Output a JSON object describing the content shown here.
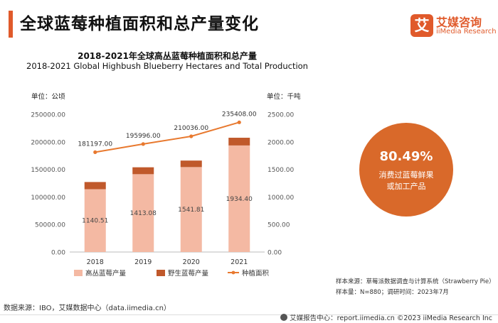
{
  "page": {
    "title": "全球蓝莓种植面积和总产量变化"
  },
  "logo": {
    "mark": "艾",
    "name_cn": "艾媒咨询",
    "name_en": "iiMedia Research"
  },
  "chart_data": {
    "type": "bar+line",
    "title": "2018-2021年全球高丛蓝莓种植面积和总产量",
    "subtitle": "2018-2021 Global  Highbush Blueberry Hectares and Total Production",
    "categories": [
      "2018",
      "2019",
      "2020",
      "2021"
    ],
    "left_axis": {
      "unit_label": "单位：公顷",
      "range": [
        0,
        250000
      ],
      "ticks": [
        "0.00",
        "50000.00",
        "100000.00",
        "150000.00",
        "200000.00",
        "250000.00"
      ]
    },
    "right_axis": {
      "unit_label": "单位：千吨",
      "range": [
        0,
        2500
      ],
      "ticks": [
        "0.00",
        "500.00",
        "1000.00",
        "1500.00",
        "2000.00",
        "2500.00"
      ]
    },
    "series": [
      {
        "name": "高丛蓝莓产量",
        "kind": "stacked-bar",
        "axis": "right",
        "color": "#f4b9a3",
        "values": [
          1140.51,
          1413.08,
          1541.81,
          1934.4
        ],
        "labels": [
          "1140.51",
          "1413.08",
          "1541.81",
          "1934.40"
        ]
      },
      {
        "name": "野生蓝莓产量",
        "kind": "stacked-bar",
        "axis": "right",
        "color": "#c0592b",
        "values": [
          130,
          125,
          118,
          140
        ]
      },
      {
        "name": "种植面积",
        "kind": "line",
        "axis": "left",
        "color": "#e8792f",
        "values": [
          181197,
          195996,
          210036,
          235408
        ],
        "labels": [
          "181197.00",
          "195996.00",
          "210036.00",
          "235408.00"
        ]
      }
    ],
    "legend_position": "bottom",
    "grid": false
  },
  "highlight": {
    "value": "80.49%",
    "label": "消费过蓝莓鲜果或加工产品",
    "color": "#d9692a"
  },
  "sample": {
    "source": "样本来源：草莓派数据调查与计算系统（Strawberry Pie）",
    "meta": "样本量：N=880；调研时间：2023年7月"
  },
  "data_source": "数据来源：IBO，艾媒数据中心（data.iimedia.cn）",
  "footer": {
    "text": "艾媒报告中心：report.iimedia.cn  ©2023  iiMedia Research Inc"
  }
}
